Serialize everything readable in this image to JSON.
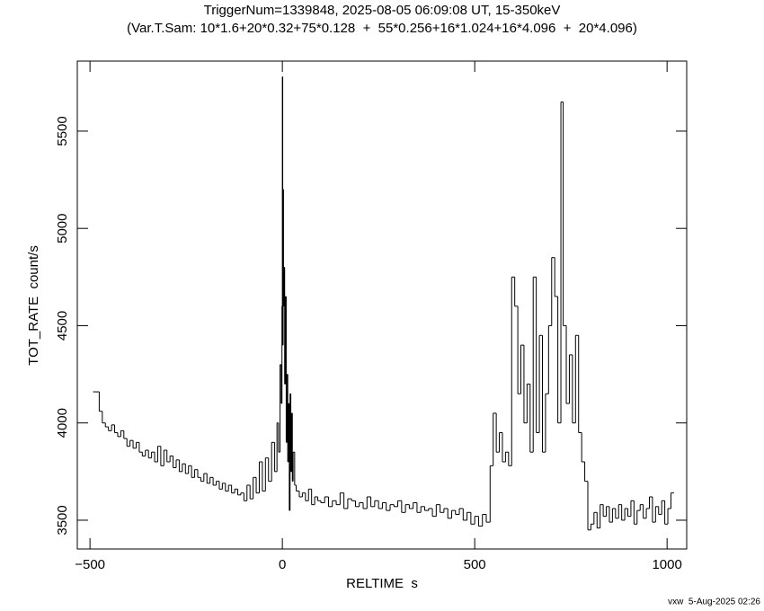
{
  "chart_data": {
    "type": "step",
    "title": "TriggerNum=1339848, 2025-08-05 06:09:08 UT, 15-350keV",
    "subtitle": "(Var.T.Sam: 10*1.6+20*0.32+75*0.128  +  55*0.256+16*1.024+16*4.096  +  20*4.096)",
    "xlabel": "RELTIME  s",
    "ylabel": "TOT_RATE  count/s",
    "footer": "vxw  5-Aug-2025 02:26",
    "color": "#000000",
    "xlim": [
      -533,
      1051
    ],
    "ylim": [
      3352,
      5860
    ],
    "xticks": [
      {
        "value": -500,
        "label": "−500"
      },
      0,
      500,
      1000
    ],
    "yticks": [
      3500,
      4000,
      4500,
      5000,
      5500
    ],
    "x": [
      -492,
      -476,
      -468,
      -460,
      -452,
      -444,
      -436,
      -428,
      -420,
      -412,
      -404,
      -396,
      -388,
      -380,
      -372,
      -364,
      -356,
      -348,
      -340,
      -332,
      -324,
      -316,
      -308,
      -300,
      -292,
      -284,
      -276,
      -268,
      -260,
      -252,
      -244,
      -236,
      -228,
      -220,
      -212,
      -204,
      -196,
      -188,
      -180,
      -172,
      -164,
      -156,
      -148,
      -140,
      -132,
      -124,
      -116,
      -108,
      -100,
      -92,
      -84,
      -76,
      -68,
      -60,
      -52,
      -44,
      -36,
      -28,
      -20,
      -14,
      -10,
      -6,
      -3,
      -1,
      0,
      1,
      2,
      3,
      4,
      6,
      8,
      10,
      12,
      14,
      16,
      18,
      20,
      22,
      24,
      26,
      28,
      32,
      36,
      44,
      52,
      60,
      68,
      76,
      84,
      92,
      100,
      110,
      120,
      130,
      140,
      150,
      160,
      170,
      180,
      190,
      200,
      210,
      220,
      230,
      240,
      250,
      260,
      270,
      280,
      290,
      300,
      310,
      320,
      330,
      340,
      350,
      360,
      370,
      380,
      390,
      400,
      410,
      420,
      430,
      440,
      450,
      460,
      470,
      480,
      490,
      500,
      510,
      520,
      530,
      540,
      548,
      556,
      564,
      572,
      580,
      588,
      596,
      604,
      612,
      620,
      628,
      636,
      644,
      652,
      660,
      668,
      676,
      684,
      692,
      700,
      708,
      716,
      724,
      730,
      738,
      746,
      754,
      762,
      770,
      778,
      786,
      794,
      802,
      810,
      818,
      826,
      834,
      842,
      850,
      858,
      866,
      874,
      882,
      890,
      898,
      906,
      914,
      922,
      930,
      938,
      946,
      954,
      962,
      970,
      978,
      986,
      994,
      1002,
      1010
    ],
    "values": [
      4160,
      4060,
      4000,
      3980,
      3960,
      3990,
      3950,
      3930,
      3960,
      3920,
      3880,
      3910,
      3870,
      3900,
      3850,
      3830,
      3860,
      3820,
      3850,
      3800,
      3880,
      3780,
      3860,
      3800,
      3830,
      3770,
      3810,
      3750,
      3790,
      3740,
      3780,
      3720,
      3760,
      3720,
      3700,
      3740,
      3690,
      3720,
      3680,
      3700,
      3660,
      3690,
      3650,
      3680,
      3640,
      3660,
      3630,
      3640,
      3600,
      3680,
      3610,
      3720,
      3640,
      3800,
      3650,
      3820,
      3700,
      3900,
      3750,
      4000,
      3850,
      4300,
      4100,
      4600,
      5780,
      4400,
      5200,
      4600,
      4800,
      4200,
      4650,
      3900,
      4250,
      3800,
      4100,
      3550,
      4150,
      3750,
      4050,
      3700,
      3850,
      3680,
      3650,
      3620,
      3640,
      3600,
      3660,
      3580,
      3620,
      3600,
      3590,
      3620,
      3570,
      3600,
      3580,
      3640,
      3560,
      3610,
      3600,
      3570,
      3590,
      3560,
      3620,
      3570,
      3600,
      3560,
      3590,
      3550,
      3580,
      3570,
      3600,
      3540,
      3580,
      3560,
      3590,
      3540,
      3570,
      3550,
      3560,
      3520,
      3580,
      3540,
      3560,
      3510,
      3550,
      3530,
      3560,
      3500,
      3540,
      3480,
      3520,
      3470,
      3530,
      3490,
      3780,
      4050,
      3850,
      3950,
      3800,
      3850,
      3780,
      4750,
      4600,
      4150,
      4400,
      4000,
      4200,
      3850,
      4750,
      3950,
      4450,
      3850,
      4150,
      4500,
      4850,
      4650,
      4000,
      5650,
      4500,
      4100,
      4350,
      4000,
      4450,
      3950,
      3800,
      3700,
      3450,
      3480,
      3540,
      3460,
      3580,
      3520,
      3570,
      3490,
      3560,
      3510,
      3580,
      3500,
      3560,
      3520,
      3600,
      3480,
      3550,
      3580,
      3510,
      3560,
      3620,
      3490,
      3570,
      3530,
      3600,
      3480,
      3560,
      3640
    ]
  }
}
